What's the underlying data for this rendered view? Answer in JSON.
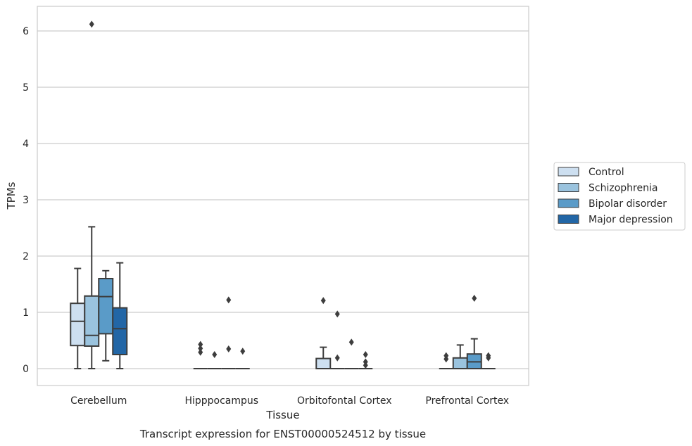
{
  "chart_data": {
    "type": "box",
    "xlabel": "Tissue",
    "ylabel": "TPMs",
    "caption": "Transcript expression for ENST00000524512 by tissue",
    "ylim": [
      -0.3,
      6.45
    ],
    "yticks": [
      0,
      1,
      2,
      3,
      4,
      5,
      6
    ],
    "grid": "horizontal",
    "legend_position": "right",
    "categories": [
      "Cerebellum",
      "Hipppocampus",
      "Orbitofontal Cortex",
      "Prefrontal Cortex"
    ],
    "series": [
      {
        "name": "Control",
        "color": "#cddff0",
        "boxes": [
          {
            "whislo": 0.0,
            "q1": 0.41,
            "med": 0.84,
            "q3": 1.16,
            "whishi": 1.78,
            "fliers": []
          },
          {
            "whislo": 0.0,
            "q1": 0.0,
            "med": 0.0,
            "q3": 0.0,
            "whishi": 0.0,
            "fliers": [
              0.43,
              0.36,
              0.29
            ]
          },
          {
            "whislo": 0.0,
            "q1": 0.0,
            "med": 0.0,
            "q3": 0.18,
            "whishi": 0.38,
            "fliers": [
              1.21
            ]
          },
          {
            "whislo": 0.0,
            "q1": 0.0,
            "med": 0.0,
            "q3": 0.0,
            "whishi": 0.0,
            "fliers": [
              0.23,
              0.17
            ]
          }
        ]
      },
      {
        "name": "Schizophrenia",
        "color": "#9ac3de",
        "boxes": [
          {
            "whislo": 0.0,
            "q1": 0.4,
            "med": 0.59,
            "q3": 1.29,
            "whishi": 2.52,
            "fliers": [
              6.12
            ]
          },
          {
            "whislo": 0.0,
            "q1": 0.0,
            "med": 0.0,
            "q3": 0.0,
            "whishi": 0.0,
            "fliers": [
              0.25
            ]
          },
          {
            "whislo": 0.0,
            "q1": 0.0,
            "med": 0.0,
            "q3": 0.0,
            "whishi": 0.0,
            "fliers": [
              0.97,
              0.19
            ]
          },
          {
            "whislo": 0.0,
            "q1": 0.0,
            "med": 0.0,
            "q3": 0.19,
            "whishi": 0.42,
            "fliers": []
          }
        ]
      },
      {
        "name": "Bipolar disorder",
        "color": "#5a9bc8",
        "boxes": [
          {
            "whislo": 0.14,
            "q1": 0.62,
            "med": 1.28,
            "q3": 1.6,
            "whishi": 1.74,
            "fliers": []
          },
          {
            "whislo": 0.0,
            "q1": 0.0,
            "med": 0.0,
            "q3": 0.0,
            "whishi": 0.0,
            "fliers": [
              1.22,
              0.35
            ]
          },
          {
            "whislo": 0.0,
            "q1": 0.0,
            "med": 0.0,
            "q3": 0.0,
            "whishi": 0.0,
            "fliers": [
              0.47
            ]
          },
          {
            "whislo": 0.0,
            "q1": 0.0,
            "med": 0.12,
            "q3": 0.26,
            "whishi": 0.53,
            "fliers": [
              1.25
            ]
          }
        ]
      },
      {
        "name": "Major depression",
        "color": "#2266a6",
        "boxes": [
          {
            "whislo": 0.0,
            "q1": 0.25,
            "med": 0.71,
            "q3": 1.08,
            "whishi": 1.88,
            "fliers": []
          },
          {
            "whislo": 0.0,
            "q1": 0.0,
            "med": 0.0,
            "q3": 0.0,
            "whishi": 0.0,
            "fliers": [
              0.31
            ]
          },
          {
            "whislo": 0.0,
            "q1": 0.0,
            "med": 0.0,
            "q3": 0.0,
            "whishi": 0.0,
            "fliers": [
              0.25,
              0.12,
              0.06
            ]
          },
          {
            "whislo": 0.0,
            "q1": 0.0,
            "med": 0.0,
            "q3": 0.0,
            "whishi": 0.0,
            "fliers": [
              0.23,
              0.19
            ]
          }
        ]
      }
    ]
  }
}
